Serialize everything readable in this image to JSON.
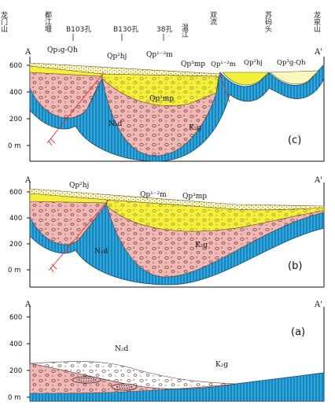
{
  "places": [
    {
      "text": "龙门山"
    },
    {
      "text": "都江堰"
    },
    {
      "text": "B103孔"
    },
    {
      "text": "B130孔"
    },
    {
      "text": "38孔"
    },
    {
      "text": "温江"
    },
    {
      "text": "双流"
    },
    {
      "text": "苏码头"
    },
    {
      "text": "龙泉山"
    }
  ],
  "section_ends": {
    "left": "A",
    "right": "A'"
  },
  "y_ticks": [
    "600",
    "400",
    "200",
    "0 m"
  ],
  "panels": [
    {
      "id": "c",
      "label": "(c)",
      "units": [
        "Qp₃g-Qh",
        "Qp²hj",
        "Qp¹⁻²m",
        "Qp³mp",
        "Qp¹⁻²m",
        "Qp²hj",
        "Qp³g-Qh",
        "Qp³mp",
        "N₂d",
        "K₂g"
      ]
    },
    {
      "id": "b",
      "label": "(b)",
      "units": [
        "Qp²hj",
        "Qp¹⁻²m",
        "Qp³mp",
        "N₂d",
        "K₂g"
      ]
    },
    {
      "id": "a",
      "label": "(a)",
      "units": [
        "N₂d",
        "K₂g"
      ]
    }
  ],
  "colors": {
    "bedrock": "#29a9e0",
    "neogene": "#f2b6b4",
    "quaternary_yellow": "#f3ef3a",
    "quaternary_pale": "#fbf7bc",
    "fault": "#e0302e"
  }
}
